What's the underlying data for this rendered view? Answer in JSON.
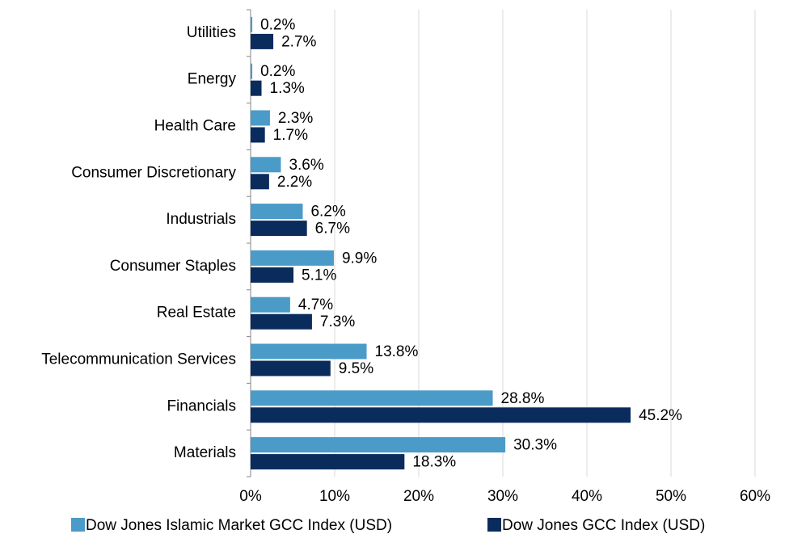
{
  "chart_data": {
    "type": "barh",
    "categories": [
      "Utilities",
      "Energy",
      "Health Care",
      "Consumer Discretionary",
      "Industrials",
      "Consumer Staples",
      "Real Estate",
      "Telecommunication Services",
      "Financials",
      "Materials"
    ],
    "series": [
      {
        "name": "Dow Jones Islamic Market GCC Index (USD)",
        "color": "#4a9bc8",
        "values": [
          0.2,
          0.2,
          2.3,
          3.6,
          6.2,
          9.9,
          4.7,
          13.8,
          28.8,
          30.3
        ],
        "value_labels": [
          "0.2%",
          "0.2%",
          "2.3%",
          "3.6%",
          "6.2%",
          "9.9%",
          "4.7%",
          "13.8%",
          "28.8%",
          "30.3%"
        ]
      },
      {
        "name": "Dow Jones GCC Index (USD)",
        "color": "#0a2c5c",
        "values": [
          2.7,
          1.3,
          1.7,
          2.2,
          6.7,
          5.1,
          7.3,
          9.5,
          45.2,
          18.3
        ],
        "value_labels": [
          "2.7%",
          "1.3%",
          "1.7%",
          "2.2%",
          "6.7%",
          "5.1%",
          "7.3%",
          "9.5%",
          "45.2%",
          "18.3%"
        ]
      }
    ],
    "xlim": [
      0,
      60
    ],
    "xticks": [
      {
        "value": 0,
        "label": "0%"
      },
      {
        "value": 10,
        "label": "10%"
      },
      {
        "value": 20,
        "label": "20%"
      },
      {
        "value": 30,
        "label": "30%"
      },
      {
        "value": 40,
        "label": "40%"
      },
      {
        "value": 50,
        "label": "50%"
      },
      {
        "value": 60,
        "label": "60%"
      }
    ],
    "grid": true,
    "legend": "bottom"
  }
}
